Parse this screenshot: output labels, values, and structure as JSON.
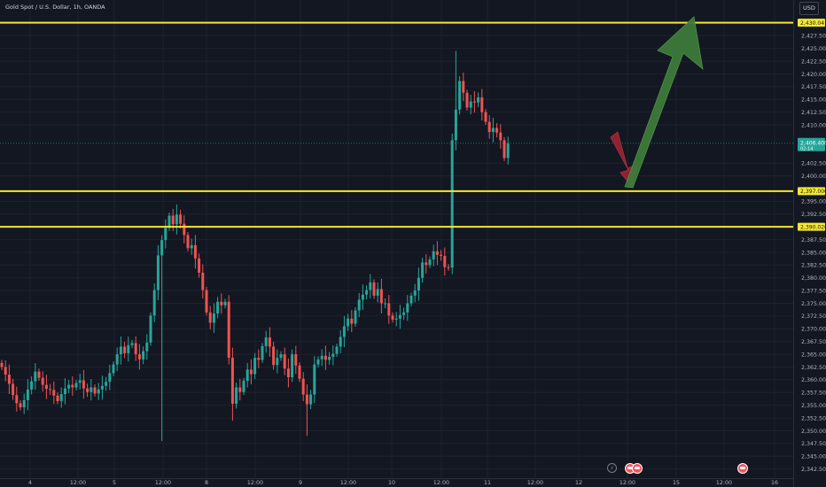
{
  "header": {
    "symbol_title": "Gold Spot / U.S. Dollar, 1h, OANDA"
  },
  "toolbar": {
    "currency_label": "USD"
  },
  "price_axis": {
    "ticks": [
      "2,427.500",
      "2,425.000",
      "2,422.500",
      "2,420.000",
      "2,417.500",
      "2,415.000",
      "2,412.500",
      "2,410.000",
      "2,402.500",
      "2,400.000",
      "2,395.000",
      "2,392.500",
      "2,387.500",
      "2,385.000",
      "2,382.500",
      "2,380.000",
      "2,377.500",
      "2,375.000",
      "2,372.500",
      "2,370.000",
      "2,367.500",
      "2,365.000",
      "2,362.500",
      "2,360.000",
      "2,357.500",
      "2,355.000",
      "2,352.500",
      "2,350.000",
      "2,347.500",
      "2,345.000",
      "2,342.500"
    ],
    "level_labels": [
      "2,430.041",
      "2,397.000",
      "2,390.020"
    ],
    "current_price_label": "2,406.400",
    "countdown_label": "02:14"
  },
  "time_axis": {
    "labels": [
      "4",
      "12:00",
      "5",
      "12:00",
      "8",
      "12:00",
      "9",
      "12:00",
      "10",
      "12:00",
      "11",
      "12:00",
      "12",
      "12:00",
      "15",
      "12:00",
      "16"
    ]
  },
  "colors": {
    "background": "#131722",
    "up_candle": "#26a69a",
    "down_candle": "#ef5350",
    "level_line": "#f5e72f",
    "arrow_up": "#3e7a3a",
    "arrow_down": "#8f2230",
    "grid": "#1e222d",
    "axis_text": "#b2b5be"
  },
  "icons": [
    "flash-icon",
    "event-icon"
  ],
  "chart_data": {
    "type": "candlestick",
    "title": "Gold Spot / U.S. Dollar, 1h, OANDA",
    "y_unit": "USD",
    "ylim": [
      2340.7,
      2434.5
    ],
    "grid": true,
    "horizontal_levels": [
      2430.041,
      2397.0,
      2390.02
    ],
    "current_price": 2406.4,
    "closes": [
      2362.5,
      2361.0,
      2359.2,
      2357.0,
      2355.4,
      2354.6,
      2356.0,
      2358.1,
      2359.7,
      2361.6,
      2360.4,
      2359.0,
      2358.2,
      2358.0,
      2356.9,
      2355.8,
      2357.2,
      2358.3,
      2359.0,
      2358.5,
      2359.4,
      2359.9,
      2358.3,
      2357.6,
      2358.5,
      2357.3,
      2358.1,
      2358.8,
      2359.6,
      2361.3,
      2363.0,
      2365.0,
      2366.5,
      2365.2,
      2366.8,
      2367.2,
      2365.0,
      2364.0,
      2365.6,
      2367.3,
      2372.6,
      2377.6,
      2384.4,
      2387.4,
      2389.8,
      2392.2,
      2390.5,
      2392.4,
      2390.6,
      2388.4,
      2385.8,
      2386.4,
      2383.8,
      2381.0,
      2377.6,
      2373.2,
      2371.2,
      2373.0,
      2375.3,
      2374.6,
      2375.3,
      2364.3,
      2355.3,
      2358.5,
      2357.6,
      2359.8,
      2362.0,
      2361.1,
      2364.3,
      2363.9,
      2366.6,
      2368.3,
      2366.5,
      2362.9,
      2364.3,
      2365.0,
      2362.2,
      2360.5,
      2365.0,
      2362.8,
      2360.2,
      2357.1,
      2355.2,
      2357.1,
      2363.0,
      2364.0,
      2364.7,
      2363.9,
      2364.5,
      2365.1,
      2366.5,
      2368.4,
      2370.5,
      2372.0,
      2371.0,
      2373.6,
      2375.7,
      2376.7,
      2377.6,
      2379.1,
      2376.5,
      2377.8,
      2375.0,
      2375.0,
      2372.6,
      2371.8,
      2372.0,
      2372.7,
      2373.2,
      2375.0,
      2376.5,
      2377.5,
      2380.0,
      2383.0,
      2382.5,
      2383.6,
      2385.2,
      2384.5,
      2384.3,
      2382.1,
      2382.0,
      2407.0,
      2413.0,
      2418.6,
      2416.3,
      2413.4,
      2414.6,
      2414.4,
      2415.4,
      2412.5,
      2410.6,
      2408.6,
      2409.4,
      2408.5,
      2407.0,
      2403.5,
      2406.4
    ]
  }
}
